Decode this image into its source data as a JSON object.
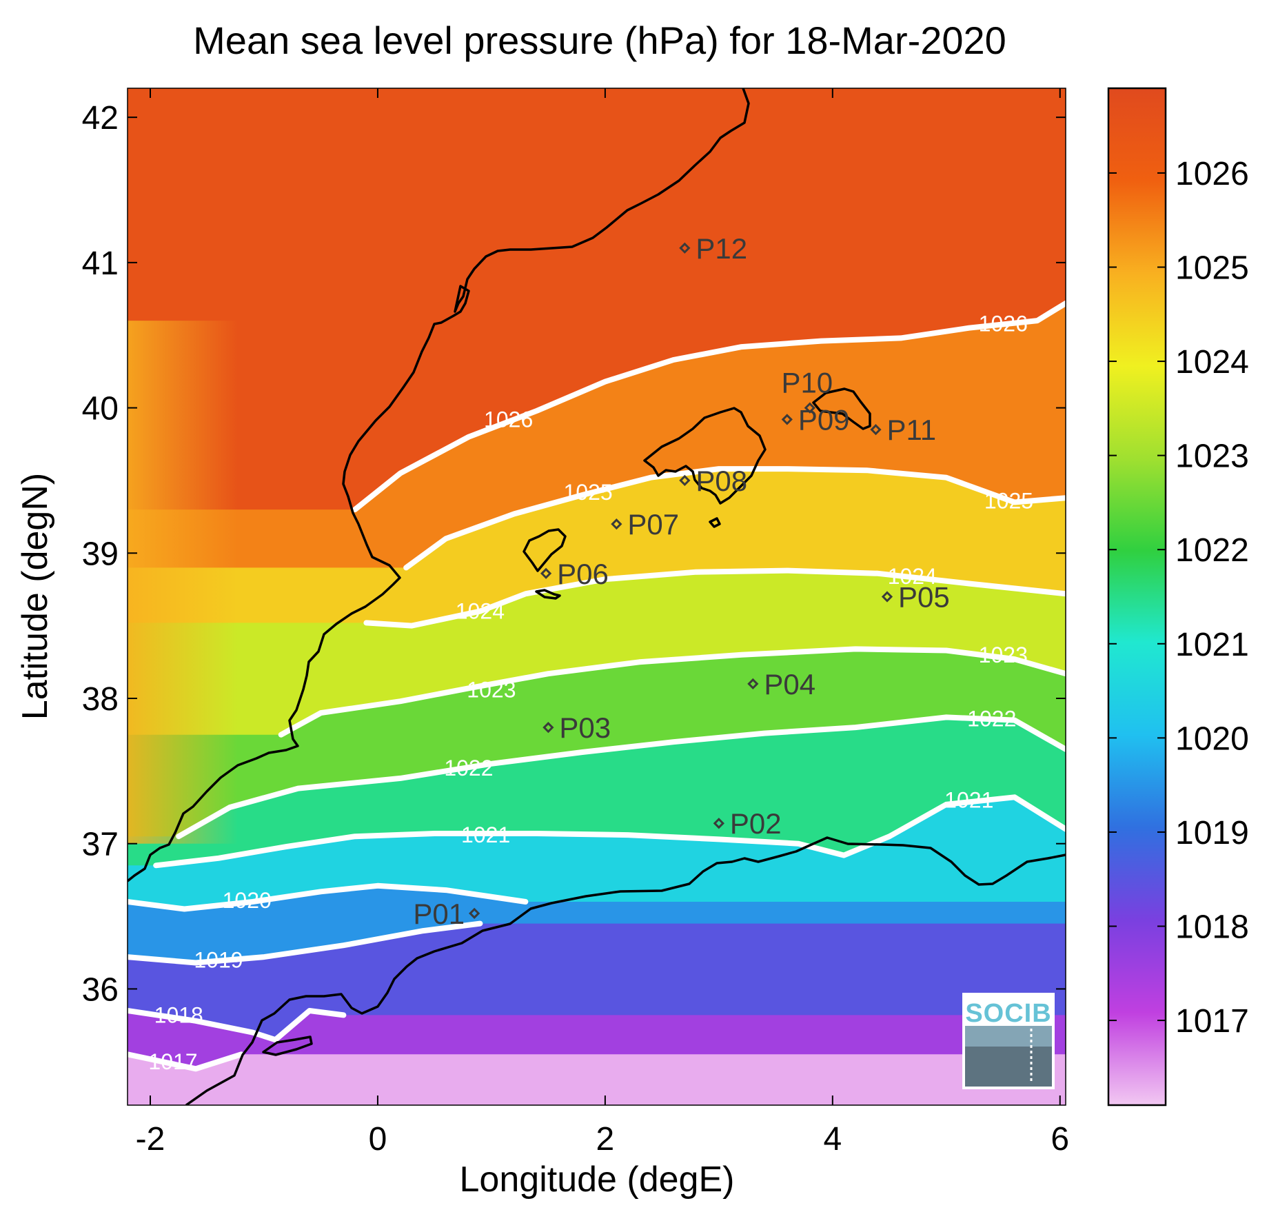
{
  "chart_data": {
    "type": "heatmap",
    "title": "Mean sea level pressure (hPa) for 18-Mar-2020",
    "xlabel": "Longitude (degE)",
    "ylabel": "Latitude (degN)",
    "xlim": [
      -2.2,
      6.05
    ],
    "ylim": [
      35.2,
      42.2
    ],
    "xticks": [
      -2,
      0,
      2,
      4,
      6
    ],
    "yticks": [
      36,
      37,
      38,
      39,
      40,
      41,
      42
    ],
    "colorbar": {
      "range": [
        1016.1,
        1026.9
      ],
      "ticks": [
        1017,
        1018,
        1019,
        1020,
        1021,
        1022,
        1023,
        1024,
        1025,
        1026
      ],
      "colormap": [
        "#f2c8f2",
        "#c040e0",
        "#7a40e0",
        "#3070e0",
        "#20c0f0",
        "#20e8d0",
        "#30d040",
        "#a0e030",
        "#f0f020",
        "#f8b020",
        "#f06010",
        "#e04a1e"
      ]
    },
    "stations": [
      {
        "name": "P01",
        "lon": 0.85,
        "lat": 36.52
      },
      {
        "name": "P02",
        "lon": 3.0,
        "lat": 37.14
      },
      {
        "name": "P03",
        "lon": 1.5,
        "lat": 37.8
      },
      {
        "name": "P04",
        "lon": 3.3,
        "lat": 38.1
      },
      {
        "name": "P05",
        "lon": 4.48,
        "lat": 38.7
      },
      {
        "name": "P06",
        "lon": 1.48,
        "lat": 38.86
      },
      {
        "name": "P07",
        "lon": 2.1,
        "lat": 39.2
      },
      {
        "name": "P08",
        "lon": 2.7,
        "lat": 39.5
      },
      {
        "name": "P09",
        "lon": 3.6,
        "lat": 39.92
      },
      {
        "name": "P10",
        "lon": 3.8,
        "lat": 40.0
      },
      {
        "name": "P11",
        "lon": 4.38,
        "lat": 39.85
      },
      {
        "name": "P12",
        "lon": 2.7,
        "lat": 41.1
      }
    ],
    "contours": [
      {
        "level": 1017,
        "label": "1017",
        "points": [
          [
            -2.2,
            35.55
          ],
          [
            -1.6,
            35.45
          ],
          [
            -1.2,
            35.55
          ]
        ],
        "labels_at": [
          [
            -1.8,
            35.5
          ]
        ]
      },
      {
        "level": 1018,
        "label": "1018",
        "points": [
          [
            -2.2,
            35.85
          ],
          [
            -1.6,
            35.78
          ],
          [
            -1.1,
            35.7
          ],
          [
            -0.9,
            35.65
          ],
          [
            -0.6,
            35.85
          ],
          [
            -0.3,
            35.82
          ]
        ],
        "labels_at": [
          [
            -1.75,
            35.82
          ]
        ]
      },
      {
        "level": 1019,
        "label": "1019",
        "points": [
          [
            -2.2,
            36.22
          ],
          [
            -1.6,
            36.18
          ],
          [
            -1.0,
            36.22
          ],
          [
            -0.3,
            36.3
          ],
          [
            0.4,
            36.4
          ],
          [
            0.9,
            36.45
          ]
        ],
        "labels_at": [
          [
            -1.4,
            36.2
          ]
        ]
      },
      {
        "level": 1020,
        "label": "1020",
        "points": [
          [
            -2.2,
            36.6
          ],
          [
            -1.7,
            36.55
          ],
          [
            -1.1,
            36.6
          ],
          [
            -0.5,
            36.67
          ],
          [
            0.0,
            36.71
          ],
          [
            0.6,
            36.68
          ],
          [
            1.3,
            36.6
          ]
        ],
        "labels_at": [
          [
            -1.15,
            36.61
          ]
        ]
      },
      {
        "level": 1021,
        "label": "1021",
        "points": [
          [
            -1.95,
            36.85
          ],
          [
            -1.4,
            36.9
          ],
          [
            -0.8,
            36.98
          ],
          [
            -0.2,
            37.05
          ],
          [
            0.5,
            37.07
          ],
          [
            1.4,
            37.07
          ],
          [
            2.2,
            37.06
          ],
          [
            3.0,
            37.03
          ],
          [
            3.7,
            37.0
          ],
          [
            4.1,
            36.92
          ],
          [
            4.5,
            37.05
          ],
          [
            5.0,
            37.27
          ],
          [
            5.6,
            37.32
          ],
          [
            6.05,
            37.1
          ]
        ],
        "labels_at": [
          [
            0.95,
            37.06
          ],
          [
            5.2,
            37.3
          ]
        ]
      },
      {
        "level": 1022,
        "label": "1022",
        "points": [
          [
            -1.75,
            37.05
          ],
          [
            -1.3,
            37.25
          ],
          [
            -0.7,
            37.38
          ],
          [
            0.2,
            37.45
          ],
          [
            1.0,
            37.55
          ],
          [
            1.8,
            37.63
          ],
          [
            2.6,
            37.7
          ],
          [
            3.4,
            37.76
          ],
          [
            4.2,
            37.8
          ],
          [
            5.0,
            37.87
          ],
          [
            5.6,
            37.85
          ],
          [
            6.05,
            37.65
          ]
        ],
        "labels_at": [
          [
            0.8,
            37.52
          ],
          [
            5.4,
            37.86
          ]
        ]
      },
      {
        "level": 1023,
        "label": "1023",
        "points": [
          [
            -0.85,
            37.75
          ],
          [
            -0.5,
            37.9
          ],
          [
            0.2,
            37.98
          ],
          [
            0.8,
            38.07
          ],
          [
            1.5,
            38.17
          ],
          [
            2.3,
            38.25
          ],
          [
            3.2,
            38.3
          ],
          [
            4.2,
            38.34
          ],
          [
            5.0,
            38.33
          ],
          [
            5.6,
            38.27
          ],
          [
            6.05,
            38.17
          ]
        ],
        "labels_at": [
          [
            1.0,
            38.06
          ],
          [
            5.5,
            38.3
          ]
        ]
      },
      {
        "level": 1024,
        "label": "1024",
        "points": [
          [
            -0.1,
            38.52
          ],
          [
            0.3,
            38.5
          ],
          [
            0.9,
            38.6
          ],
          [
            1.3,
            38.72
          ],
          [
            2.0,
            38.82
          ],
          [
            2.8,
            38.87
          ],
          [
            3.6,
            38.88
          ],
          [
            4.4,
            38.86
          ],
          [
            5.2,
            38.79
          ],
          [
            6.05,
            38.72
          ]
        ],
        "labels_at": [
          [
            0.9,
            38.6
          ],
          [
            4.7,
            38.84
          ]
        ]
      },
      {
        "level": 1025,
        "label": "1025",
        "points": [
          [
            0.25,
            38.9
          ],
          [
            0.6,
            39.1
          ],
          [
            1.2,
            39.27
          ],
          [
            1.8,
            39.4
          ],
          [
            2.4,
            39.52
          ],
          [
            3.0,
            39.58
          ],
          [
            3.6,
            39.58
          ],
          [
            4.3,
            39.57
          ],
          [
            5.0,
            39.52
          ],
          [
            5.6,
            39.35
          ],
          [
            6.05,
            39.38
          ]
        ],
        "labels_at": [
          [
            1.85,
            39.42
          ],
          [
            5.55,
            39.36
          ]
        ]
      },
      {
        "level": 1026,
        "label": "1026",
        "points": [
          [
            -0.2,
            39.3
          ],
          [
            0.2,
            39.55
          ],
          [
            0.8,
            39.8
          ],
          [
            1.4,
            39.98
          ],
          [
            2.0,
            40.18
          ],
          [
            2.6,
            40.33
          ],
          [
            3.2,
            40.42
          ],
          [
            3.9,
            40.46
          ],
          [
            4.6,
            40.48
          ],
          [
            5.2,
            40.55
          ],
          [
            5.8,
            40.6
          ],
          [
            6.05,
            40.72
          ]
        ],
        "labels_at": [
          [
            1.15,
            39.92
          ],
          [
            5.5,
            40.58
          ]
        ]
      }
    ]
  },
  "logo": {
    "text": "SOCIB"
  }
}
